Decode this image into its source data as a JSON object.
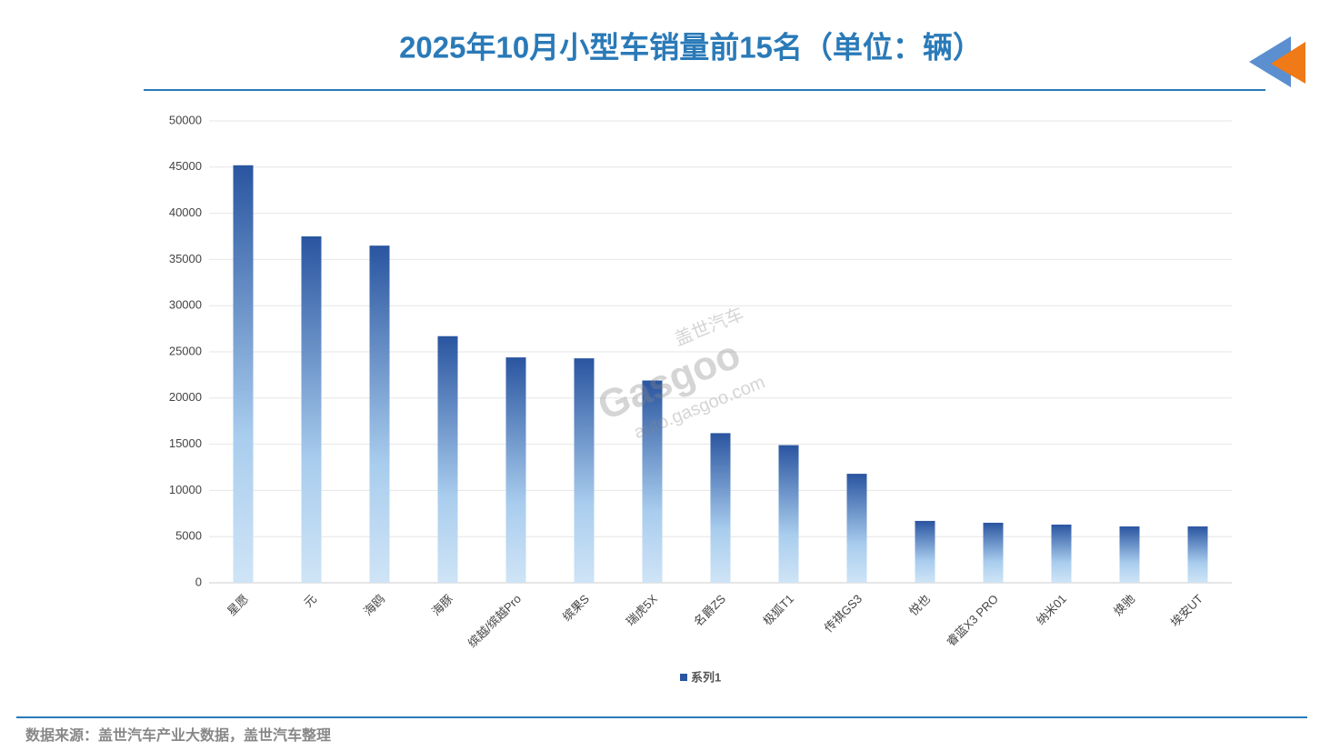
{
  "chart_data": {
    "type": "bar",
    "title": "2025年10月小型车销量前15名（单位：辆）",
    "categories": [
      "星愿",
      "元",
      "海鸥",
      "海豚",
      "缤越/缤越Pro",
      "缤果S",
      "瑞虎5X",
      "名爵ZS",
      "极狐T1",
      "传祺GS3",
      "悦也",
      "睿蓝X3 PRO",
      "纳米01",
      "焕驰",
      "埃安UT"
    ],
    "series": [
      {
        "name": "系列1",
        "color": "#2a55a0",
        "values": [
          45200,
          37500,
          36500,
          26700,
          24400,
          24300,
          21900,
          16200,
          14900,
          11800,
          6700,
          6500,
          6300,
          6100,
          6100
        ]
      }
    ],
    "ylim": [
      0,
      50000
    ],
    "yticks": [
      0,
      5000,
      10000,
      15000,
      20000,
      25000,
      30000,
      35000,
      40000,
      45000,
      50000
    ],
    "grid": true,
    "legend": "bottom"
  },
  "watermark": {
    "brand": "盖世汽车",
    "logo": "Gasgoo",
    "url": "auto.gasgoo.com"
  },
  "source": "数据来源：盖世汽车产业大数据，盖世汽车整理"
}
